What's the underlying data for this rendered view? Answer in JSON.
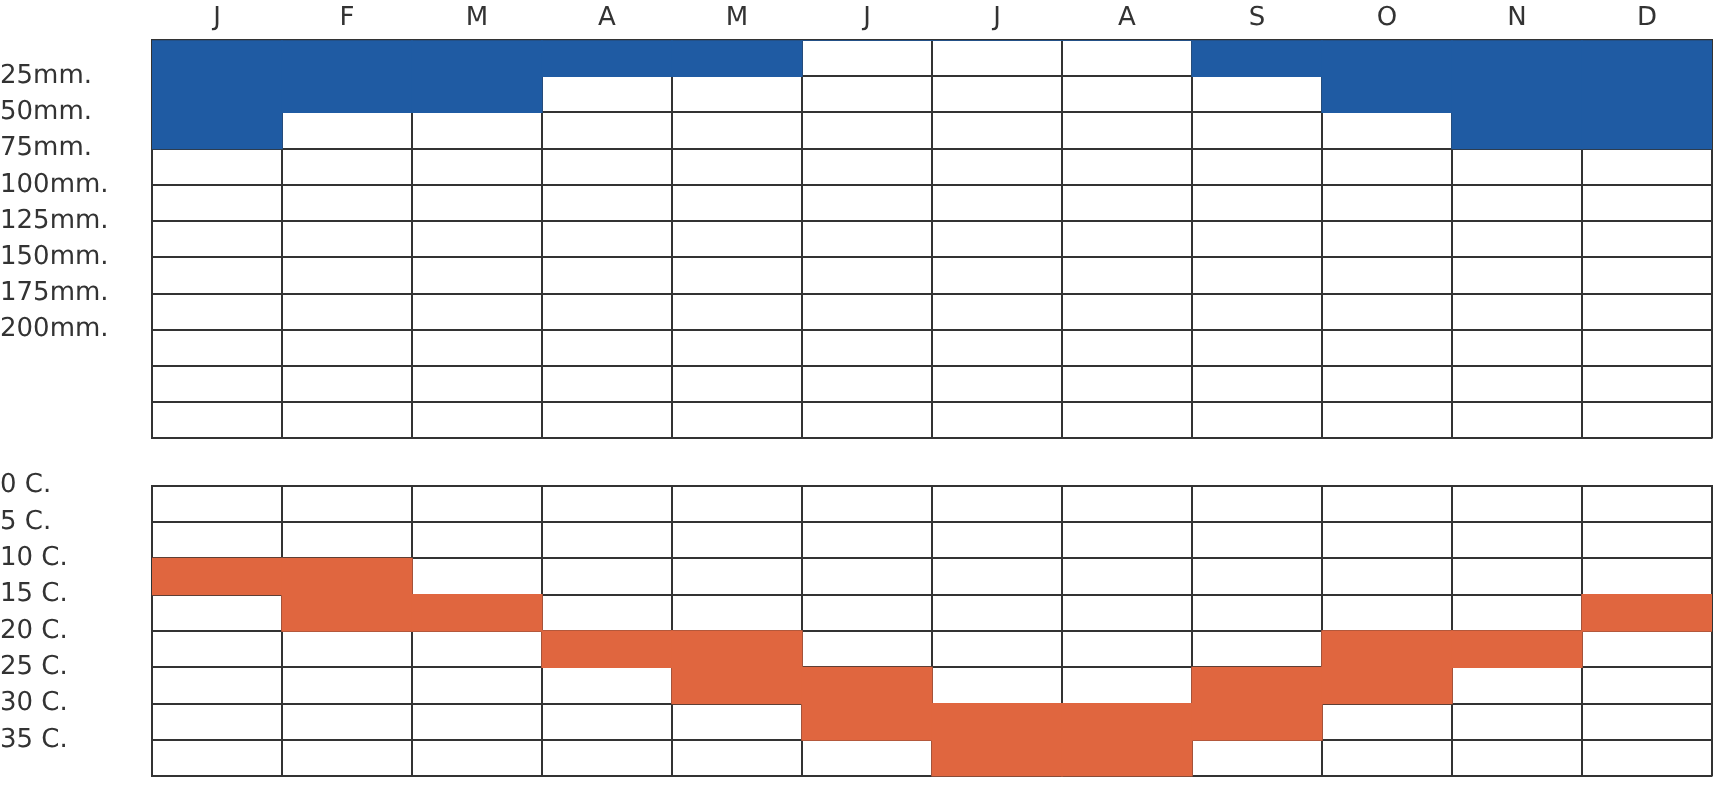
{
  "chart_data": [
    {
      "type": "bar",
      "categories": [
        "J",
        "F",
        "M",
        "A",
        "M",
        "J",
        "J",
        "A",
        "S",
        "O",
        "N",
        "D"
      ],
      "values": [
        75,
        50,
        50,
        25,
        25,
        0,
        0,
        0,
        25,
        50,
        75,
        75
      ],
      "color": "#1f5ba3",
      "ylim": [
        275,
        0
      ],
      "yticks": [
        {
          "value": 0,
          "label": null
        },
        {
          "value": 25,
          "label": "25mm."
        },
        {
          "value": 50,
          "label": "50mm."
        },
        {
          "value": 75,
          "label": "75mm."
        },
        {
          "value": 100,
          "label": "100mm."
        },
        {
          "value": 125,
          "label": "125mm."
        },
        {
          "value": 150,
          "label": "150mm."
        },
        {
          "value": 175,
          "label": "175mm."
        },
        {
          "value": 200,
          "label": "200mm."
        },
        {
          "value": 225,
          "label": null
        },
        {
          "value": 250,
          "label": null
        },
        {
          "value": 275,
          "label": null
        }
      ],
      "grid": true
    },
    {
      "type": "bar",
      "categories": [
        null,
        null,
        null,
        null,
        null,
        null,
        null,
        null,
        null,
        null,
        null,
        null
      ],
      "values": [
        5,
        10,
        5,
        5,
        10,
        10,
        10,
        10,
        10,
        10,
        5,
        5
      ],
      "base": [
        10,
        10,
        15,
        20,
        20,
        25,
        30,
        30,
        25,
        20,
        20,
        15
      ],
      "color": "#e0663f",
      "ylim": [
        40,
        0
      ],
      "yticks": [
        {
          "value": 0,
          "label": "0 C."
        },
        {
          "value": 5,
          "label": "5 C."
        },
        {
          "value": 10,
          "label": "10 C."
        },
        {
          "value": 15,
          "label": "15 C."
        },
        {
          "value": 20,
          "label": "20 C."
        },
        {
          "value": 25,
          "label": "25 C."
        },
        {
          "value": 30,
          "label": "30 C."
        },
        {
          "value": 35,
          "label": "35 C."
        },
        {
          "value": 40,
          "label": null
        }
      ],
      "grid": true,
      "tick_labels": "y"
    }
  ]
}
